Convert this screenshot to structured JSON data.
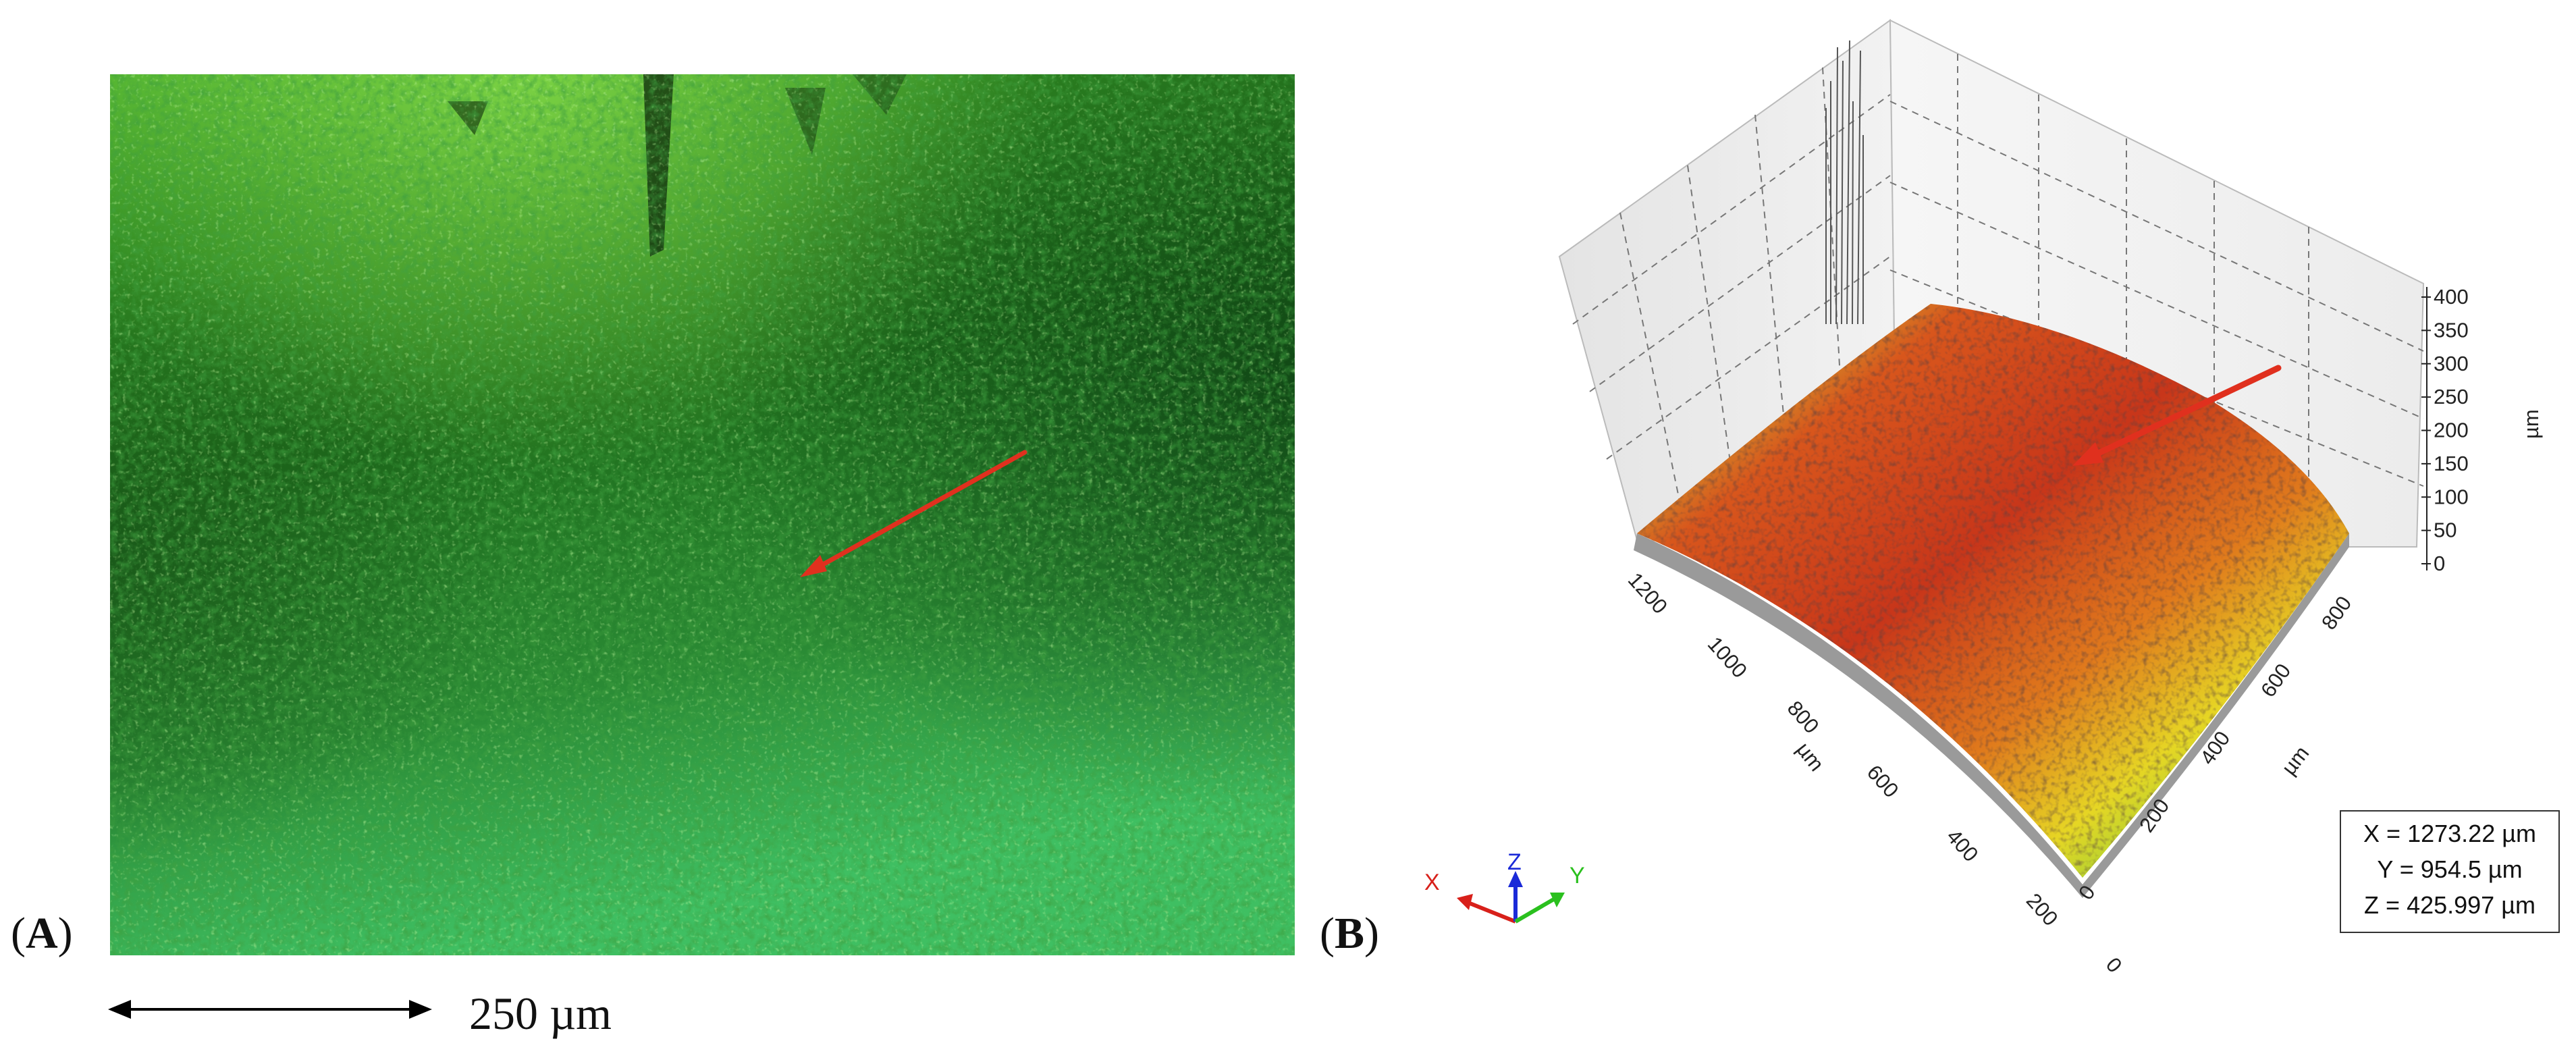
{
  "panel_a": {
    "label_open": "(",
    "label_letter": "A",
    "label_close": ")",
    "scale_bar_text": "250 µm",
    "arrow_color": "#e0301e",
    "image_colors": {
      "dark": "#0b3a0f",
      "mid": "#2f8a28",
      "light": "#6fd64a"
    }
  },
  "panel_b": {
    "label_open": "(",
    "label_letter": "B",
    "label_close": ")",
    "z_ticks": [
      "400",
      "350",
      "300",
      "250",
      "200",
      "150",
      "100",
      "50",
      "0"
    ],
    "z_unit": "µm",
    "x_ticks": [
      "1200",
      "1000",
      "800",
      "600",
      "400",
      "200",
      "0"
    ],
    "x_unit": "µm",
    "y_ticks": [
      "800",
      "600",
      "400",
      "200",
      "0"
    ],
    "y_unit": "µm",
    "readout": {
      "x": "X = 1273.22 µm",
      "y": "Y = 954.5 µm",
      "z": "Z = 425.997 µm"
    },
    "triad": {
      "x": "X",
      "y": "Y",
      "z": "Z"
    },
    "arrow_color": "#e0301e",
    "surface_colors": [
      "#1c6fd0",
      "#2bb3a0",
      "#7fd23a",
      "#e6e020",
      "#f08a1a",
      "#d8401a",
      "#b82a14"
    ]
  }
}
